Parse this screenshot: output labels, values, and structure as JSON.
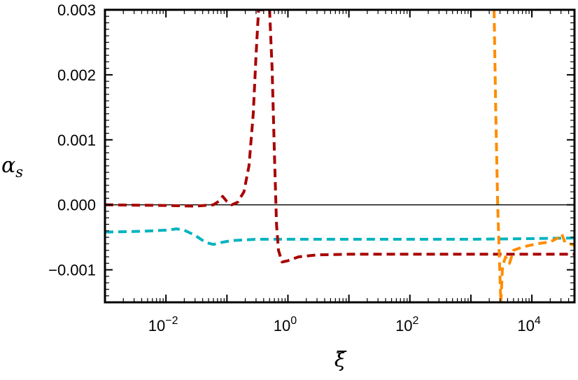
{
  "chart_data": {
    "type": "line",
    "title": "",
    "xlabel": "ξ̃",
    "ylabel": "α",
    "ylabel_subscript": "s",
    "xscale": "log",
    "xlim": [
      0.001,
      50000
    ],
    "ylim": [
      -0.0015,
      0.003
    ],
    "grid": false,
    "legend": "none",
    "xticks": [
      {
        "value": 0.01,
        "base": "10",
        "exp": "−2"
      },
      {
        "value": 1,
        "base": "10",
        "exp": "0"
      },
      {
        "value": 100,
        "base": "10",
        "exp": "2"
      },
      {
        "value": 10000,
        "base": "10",
        "exp": "4"
      }
    ],
    "yticks": [
      {
        "value": 0.003,
        "label": "0.003"
      },
      {
        "value": 0.002,
        "label": "0.002"
      },
      {
        "value": 0.001,
        "label": "0.001"
      },
      {
        "value": 0.0,
        "label": "0.000"
      },
      {
        "value": -0.001,
        "label": "−0.001"
      }
    ],
    "reference_line": {
      "y": 0.0,
      "color": "#000000"
    },
    "series": [
      {
        "color": "#00b3bf",
        "style": "dashed",
        "points": [
          [
            0.001,
            -0.00042
          ],
          [
            0.003,
            -0.00041
          ],
          [
            0.006,
            -0.0004
          ],
          [
            0.01,
            -0.00039
          ],
          [
            0.015,
            -0.00037
          ],
          [
            0.02,
            -0.00039
          ],
          [
            0.03,
            -0.00047
          ],
          [
            0.045,
            -0.00058
          ],
          [
            0.06,
            -0.00061
          ],
          [
            0.08,
            -0.00058
          ],
          [
            0.12,
            -0.00055
          ],
          [
            0.3,
            -0.00053
          ],
          [
            1,
            -0.00053
          ],
          [
            10,
            -0.00053
          ],
          [
            100,
            -0.00053
          ],
          [
            1000,
            -0.00053
          ],
          [
            10000,
            -0.00052
          ],
          [
            50000,
            -0.00051
          ]
        ]
      },
      {
        "color": "#a80000",
        "style": "dashed",
        "points": [
          [
            0.001,
            0.0
          ],
          [
            0.01,
            -1e-05
          ],
          [
            0.03,
            -2e-05
          ],
          [
            0.06,
            0.0
          ],
          [
            0.075,
            6e-05
          ],
          [
            0.085,
            0.00013
          ],
          [
            0.1,
            5e-05
          ],
          [
            0.12,
            0.0
          ],
          [
            0.15,
            4e-05
          ],
          [
            0.19,
            0.0002
          ],
          [
            0.23,
            0.0006
          ],
          [
            0.27,
            0.0014
          ],
          [
            0.3,
            0.0023
          ],
          [
            0.33,
            0.003
          ],
          [
            0.5,
            0.003
          ],
          [
            0.55,
            0.0021
          ],
          [
            0.6,
            0.0008
          ],
          [
            0.65,
            -0.0003
          ],
          [
            0.7,
            -0.0007
          ],
          [
            0.8,
            -0.00088
          ],
          [
            1,
            -0.00086
          ],
          [
            1.5,
            -0.0008
          ],
          [
            3,
            -0.00077
          ],
          [
            10,
            -0.00076
          ],
          [
            100,
            -0.00076
          ],
          [
            1000,
            -0.00076
          ],
          [
            10000,
            -0.00076
          ],
          [
            50000,
            -0.00076
          ]
        ]
      },
      {
        "color": "#ff8c00",
        "style": "dashed",
        "points": [
          [
            2400,
            0.003
          ],
          [
            2550,
            0.0015
          ],
          [
            2750,
            0.0
          ],
          [
            2950,
            -0.0009
          ],
          [
            3100,
            -0.0015
          ],
          [
            3300,
            -0.00095
          ],
          [
            3700,
            -0.0008
          ],
          [
            4300,
            -0.0009
          ],
          [
            5000,
            -0.0007
          ],
          [
            7000,
            -0.00065
          ],
          [
            12000,
            -0.0006
          ],
          [
            20000,
            -0.00057
          ],
          [
            28000,
            -0.0005
          ],
          [
            31000,
            -0.00045
          ],
          [
            35000,
            -0.00058
          ],
          [
            50000,
            -0.00062
          ]
        ]
      }
    ]
  }
}
